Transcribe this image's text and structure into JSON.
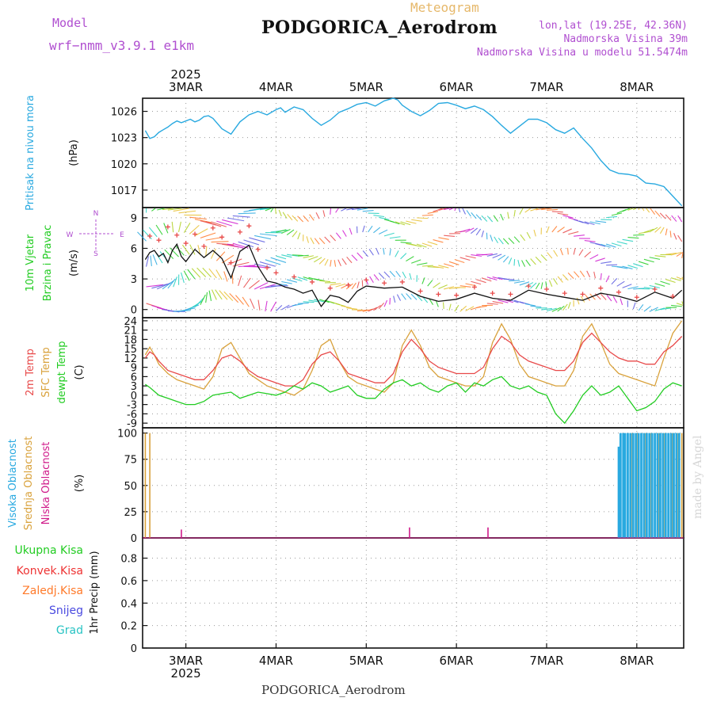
{
  "header": {
    "model_label": "Model",
    "model_value": "wrf−nmm_v3.9.1 e1km",
    "meteogram_label": "Meteogram",
    "station_title": "PODGORICA_Aerodrom",
    "lonlat": "lon,lat (19.25E, 42.36N)",
    "altitude": "Nadmorska Visina 39m",
    "model_altitude": "Nadmorska Visina u modelu 51.5474m",
    "year": "2025",
    "footer_title": "PODGORICA_Aerodrom",
    "watermark": "made by Angel"
  },
  "colors": {
    "pressure": "#29a9e0",
    "temp2m": "#e84a4a",
    "sfc": "#d9a23c",
    "dewpoint": "#22cc22",
    "high_cloud": "#29a9e0",
    "mid_cloud": "#d9a23c",
    "low_cloud": "#d01a8a",
    "wind_speed": "#111111",
    "gust": "#e84a4a",
    "label_green": "#22cc22",
    "label_red": "#ee3333",
    "label_orange": "#ff7a2a",
    "label_blue": "#4a4ae0",
    "label_cyan": "#27c3c3",
    "label_purple": "#b04fd0"
  },
  "chart_data": [
    {
      "type": "line",
      "panel": "pressure",
      "ylabel_lines": [
        "Pritisak na nivou mora"
      ],
      "unit": "(hPa)",
      "ylim": [
        1015,
        1027.5
      ],
      "yticks": [
        1017,
        1020,
        1023,
        1026
      ],
      "x_days": [
        "3MAR",
        "4MAR",
        "5MAR",
        "6MAR",
        "7MAR",
        "8MAR"
      ],
      "grid": true,
      "series": [
        {
          "color_key": "pressure",
          "x": [
            2.55,
            2.6,
            2.65,
            2.7,
            2.75,
            2.8,
            2.85,
            2.9,
            2.95,
            3.0,
            3.05,
            3.1,
            3.15,
            3.2,
            3.25,
            3.3,
            3.4,
            3.5,
            3.6,
            3.7,
            3.8,
            3.9,
            4.0,
            4.05,
            4.1,
            4.15,
            4.2,
            4.3,
            4.4,
            4.5,
            4.6,
            4.7,
            4.8,
            4.9,
            5.0,
            5.1,
            5.2,
            5.3,
            5.35,
            5.4,
            5.5,
            5.6,
            5.7,
            5.8,
            5.9,
            6.0,
            6.1,
            6.2,
            6.3,
            6.4,
            6.5,
            6.6,
            6.7,
            6.8,
            6.9,
            7.0,
            7.1,
            7.2,
            7.3,
            7.4,
            7.5,
            7.6,
            7.7,
            7.8,
            7.9,
            8.0,
            8.1,
            8.2,
            8.3,
            8.4,
            8.5
          ],
          "y": [
            1023.8,
            1022.9,
            1023.1,
            1023.6,
            1023.9,
            1024.2,
            1024.6,
            1024.9,
            1024.7,
            1024.9,
            1025.1,
            1024.8,
            1025.0,
            1025.4,
            1025.5,
            1025.2,
            1024.0,
            1023.4,
            1024.8,
            1025.6,
            1026.0,
            1025.6,
            1026.2,
            1026.4,
            1025.9,
            1026.2,
            1026.5,
            1026.2,
            1025.2,
            1024.4,
            1025.0,
            1025.9,
            1026.3,
            1026.8,
            1027.0,
            1026.6,
            1027.2,
            1027.5,
            1027.3,
            1026.7,
            1026.0,
            1025.5,
            1026.1,
            1026.9,
            1027.0,
            1026.7,
            1026.3,
            1026.6,
            1026.2,
            1025.4,
            1024.4,
            1023.5,
            1024.3,
            1025.1,
            1025.1,
            1024.7,
            1023.9,
            1023.5,
            1024.1,
            1022.9,
            1021.8,
            1020.4,
            1019.3,
            1018.9,
            1018.8,
            1018.6,
            1017.8,
            1017.7,
            1017.4,
            1016.3,
            1015.2
          ]
        }
      ]
    },
    {
      "type": "line",
      "panel": "wind",
      "ylabel_lines": [
        "10m Vjetar",
        "Brzina i Pravac"
      ],
      "unit": "(m/s)",
      "compass": {
        "n": "N",
        "s": "S",
        "e": "E",
        "w": "W"
      },
      "ylim": [
        -0.8,
        10
      ],
      "yticks": [
        0,
        3,
        6,
        9
      ],
      "grid": true,
      "series": [
        {
          "name_key": "speed",
          "color_key": "wind_speed",
          "x": [
            2.55,
            2.6,
            2.65,
            2.7,
            2.75,
            2.8,
            2.85,
            2.9,
            2.95,
            3.0,
            3.1,
            3.2,
            3.3,
            3.4,
            3.5,
            3.6,
            3.7,
            3.8,
            3.9,
            4.0,
            4.1,
            4.2,
            4.3,
            4.4,
            4.5,
            4.6,
            4.7,
            4.8,
            4.9,
            5.0,
            5.2,
            5.4,
            5.6,
            5.8,
            6.0,
            6.2,
            6.4,
            6.6,
            6.8,
            7.0,
            7.2,
            7.4,
            7.6,
            7.8,
            8.0,
            8.2,
            8.4,
            8.5
          ],
          "y": [
            4.9,
            5.6,
            5.8,
            5.2,
            5.5,
            4.6,
            5.8,
            6.4,
            5.2,
            4.7,
            5.9,
            5.1,
            5.8,
            5.0,
            3.1,
            5.7,
            6.3,
            4.2,
            2.8,
            2.6,
            2.2,
            2.0,
            1.6,
            1.9,
            0.3,
            1.4,
            1.2,
            0.7,
            1.8,
            2.3,
            2.1,
            2.2,
            1.3,
            0.8,
            1.0,
            1.6,
            1.1,
            0.9,
            1.9,
            1.5,
            1.2,
            0.9,
            1.6,
            1.3,
            0.8,
            1.7,
            1.1,
            1.9
          ]
        },
        {
          "name_key": "gust",
          "color_key": "gust",
          "x": [
            2.6,
            2.7,
            2.8,
            2.9,
            3.0,
            3.1,
            3.2,
            3.3,
            3.4,
            3.5,
            3.6,
            3.7,
            3.8,
            3.9,
            4.0,
            4.2,
            4.4,
            4.6,
            4.8,
            5.0,
            5.2,
            5.4,
            5.6,
            5.8,
            6.0,
            6.2,
            6.4,
            6.6,
            6.8,
            7.0,
            7.2,
            7.4,
            7.6,
            7.8,
            8.0,
            8.2,
            8.4
          ],
          "y": [
            7.2,
            6.8,
            8.1,
            7.3,
            6.5,
            7.4,
            6.2,
            8.0,
            7.1,
            4.6,
            7.6,
            8.2,
            5.9,
            4.1,
            3.6,
            3.2,
            2.7,
            2.1,
            2.4,
            2.9,
            2.6,
            2.7,
            1.8,
            1.5,
            1.4,
            2.2,
            1.6,
            1.5,
            2.3,
            2.0,
            1.6,
            1.5,
            2.1,
            1.7,
            1.2,
            2.0,
            1.3
          ]
        }
      ]
    },
    {
      "type": "line",
      "panel": "temperature",
      "label_2m": "2m Temp",
      "label_sfc": "SFC Temp",
      "label_dew": "dewpt Temp",
      "unit": "(C)",
      "ylim": [
        -10.5,
        25
      ],
      "yticks": [
        -9,
        -6,
        -3,
        0,
        3,
        6,
        9,
        12,
        15,
        18,
        21,
        24
      ],
      "grid": true,
      "series": [
        {
          "color_key": "sfc",
          "x": [
            2.55,
            2.6,
            2.65,
            2.7,
            2.8,
            2.9,
            3.0,
            3.1,
            3.2,
            3.3,
            3.4,
            3.5,
            3.6,
            3.7,
            3.8,
            3.9,
            4.0,
            4.1,
            4.2,
            4.3,
            4.4,
            4.5,
            4.6,
            4.7,
            4.8,
            4.9,
            5.0,
            5.1,
            5.2,
            5.3,
            5.4,
            5.5,
            5.6,
            5.7,
            5.8,
            5.9,
            6.0,
            6.1,
            6.2,
            6.3,
            6.4,
            6.5,
            6.6,
            6.7,
            6.8,
            6.9,
            7.0,
            7.1,
            7.2,
            7.3,
            7.4,
            7.5,
            7.6,
            7.7,
            7.8,
            7.9,
            8.0,
            8.1,
            8.2,
            8.3,
            8.4,
            8.5
          ],
          "y": [
            13,
            15.5,
            13,
            10,
            7,
            5,
            4,
            3,
            2,
            6,
            15,
            17,
            12,
            7,
            5,
            3,
            2,
            1,
            0,
            2,
            8,
            16,
            18,
            11,
            6,
            4,
            3,
            2,
            1,
            4,
            16,
            21,
            16,
            9,
            6,
            5,
            4,
            3,
            3,
            6,
            17,
            23,
            18,
            10,
            6,
            5,
            4,
            3,
            3,
            8,
            19,
            23,
            17,
            10,
            7,
            6,
            5,
            4,
            3,
            12,
            20,
            24
          ]
        },
        {
          "color_key": "temp2m",
          "x": [
            2.55,
            2.6,
            2.65,
            2.7,
            2.8,
            2.9,
            3.0,
            3.1,
            3.2,
            3.3,
            3.4,
            3.5,
            3.6,
            3.7,
            3.8,
            3.9,
            4.0,
            4.1,
            4.2,
            4.3,
            4.4,
            4.5,
            4.6,
            4.7,
            4.8,
            4.9,
            5.0,
            5.1,
            5.2,
            5.3,
            5.4,
            5.5,
            5.6,
            5.7,
            5.8,
            5.9,
            6.0,
            6.1,
            6.2,
            6.3,
            6.4,
            6.5,
            6.6,
            6.7,
            6.8,
            6.9,
            7.0,
            7.1,
            7.2,
            7.3,
            7.4,
            7.5,
            7.6,
            7.7,
            7.8,
            7.9,
            8.0,
            8.1,
            8.2,
            8.3,
            8.4,
            8.5
          ],
          "y": [
            12,
            14,
            13,
            11,
            8,
            7,
            6,
            5,
            5,
            8,
            12,
            13,
            11,
            8,
            6,
            5,
            4,
            3,
            3,
            5,
            10,
            13,
            14,
            11,
            7,
            6,
            5,
            4,
            4,
            7,
            14,
            18,
            15,
            11,
            9,
            8,
            7,
            7,
            7,
            9,
            15,
            19,
            17,
            13,
            11,
            10,
            9,
            8,
            8,
            11,
            17,
            20,
            17,
            14,
            12,
            11,
            11,
            10,
            10,
            14,
            16,
            19
          ]
        },
        {
          "color_key": "dewpoint",
          "x": [
            2.55,
            2.6,
            2.7,
            2.8,
            2.9,
            3.0,
            3.1,
            3.2,
            3.3,
            3.4,
            3.5,
            3.6,
            3.7,
            3.8,
            3.9,
            4.0,
            4.1,
            4.2,
            4.3,
            4.4,
            4.5,
            4.6,
            4.7,
            4.8,
            4.9,
            5.0,
            5.1,
            5.2,
            5.3,
            5.4,
            5.5,
            5.6,
            5.7,
            5.8,
            5.9,
            6.0,
            6.1,
            6.2,
            6.3,
            6.4,
            6.5,
            6.6,
            6.7,
            6.8,
            6.9,
            7.0,
            7.1,
            7.2,
            7.3,
            7.4,
            7.5,
            7.6,
            7.7,
            7.8,
            7.9,
            8.0,
            8.1,
            8.2,
            8.3,
            8.4,
            8.5
          ],
          "y": [
            3.5,
            2.5,
            0,
            -1,
            -2,
            -3,
            -3,
            -2,
            0,
            0.5,
            1,
            -1,
            0,
            1,
            0.5,
            0,
            1,
            3,
            2,
            4,
            3,
            1,
            2,
            3,
            0,
            -1,
            -1,
            2,
            4,
            5,
            3,
            4,
            2,
            1,
            3,
            4,
            1,
            4,
            3,
            5,
            6,
            3,
            2,
            3,
            1,
            0,
            -6,
            -9,
            -5,
            0,
            3,
            0,
            1,
            3,
            -1,
            -5,
            -4,
            -2,
            2,
            4,
            3
          ]
        }
      ]
    },
    {
      "type": "bar",
      "panel": "cloud",
      "label_high": "Visoka Oblacnost",
      "label_mid": "Srednja Oblacnost",
      "label_low": "Niska Oblacnost",
      "unit": "(%)",
      "ylim": [
        0,
        105
      ],
      "yticks": [
        0,
        25,
        50,
        75,
        100
      ],
      "grid": true,
      "series": [
        {
          "name_key": "mid",
          "color_key": "mid_cloud",
          "x": [
            2.55,
            2.6,
            7.9,
            7.95,
            8.0,
            8.05,
            8.1,
            8.15,
            8.2,
            8.25,
            8.3,
            8.35,
            8.4,
            8.45,
            8.5
          ],
          "values": [
            100,
            100,
            15,
            100,
            100,
            100,
            100,
            100,
            100,
            100,
            100,
            100,
            100,
            100,
            100
          ]
        },
        {
          "name_key": "high",
          "color_key": "high_cloud",
          "x": [
            7.8,
            7.82,
            7.85,
            7.87,
            7.9,
            7.93,
            7.96,
            7.99,
            8.02,
            8.05,
            8.08,
            8.11,
            8.14,
            8.17,
            8.2,
            8.23,
            8.26,
            8.29,
            8.32,
            8.35,
            8.38,
            8.41,
            8.44,
            8.47
          ],
          "values": [
            87,
            100,
            100,
            100,
            100,
            100,
            100,
            100,
            100,
            100,
            100,
            100,
            100,
            100,
            100,
            100,
            100,
            100,
            100,
            100,
            100,
            100,
            100,
            100
          ]
        },
        {
          "name_key": "low",
          "color_key": "low_cloud",
          "x": [
            2.95,
            5.48,
            6.35
          ],
          "values": [
            8,
            10,
            10
          ]
        }
      ]
    },
    {
      "type": "bar",
      "panel": "precip",
      "ylabel_lines": [
        "1hr Precip (mm)"
      ],
      "legend": [
        "Ukupna Kisa",
        "Konvek.Kisa",
        "Zaledj.Kisa",
        "Snijeg",
        "Grad"
      ],
      "ylim": [
        0,
        0.98
      ],
      "yticks": [
        0,
        0.2,
        0.4,
        0.6,
        0.8
      ],
      "ytick_labels": [
        "0",
        "0.2",
        "0.4",
        "0.6",
        "0.8"
      ],
      "grid": true,
      "series": []
    }
  ]
}
